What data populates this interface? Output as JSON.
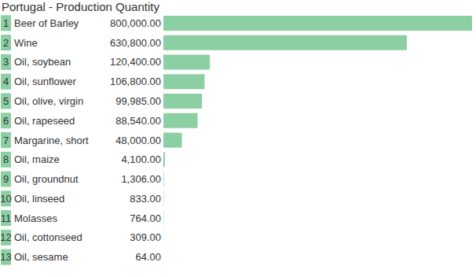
{
  "chart_data": {
    "type": "bar",
    "title": "Portugal - Production Quantity",
    "orientation": "horizontal",
    "ranks": [
      1,
      2,
      3,
      4,
      5,
      6,
      7,
      8,
      9,
      10,
      11,
      12,
      13
    ],
    "categories": [
      "Beer of Barley",
      "Wine",
      "Oil, soybean",
      "Oil, sunflower",
      "Oil, olive, virgin",
      "Oil, rapeseed",
      "Margarine, short",
      "Oil, maize",
      "Oil, groundnut",
      "Oil, linseed",
      "Molasses",
      "Oil, cottonseed",
      "Oil, sesame"
    ],
    "values": [
      800000,
      630800,
      120400,
      106800,
      99985,
      88540,
      48000,
      4100,
      1306,
      833,
      764,
      309,
      64
    ],
    "value_labels": [
      "800,000.00",
      "630,800.00",
      "120,400.00",
      "106,800.00",
      "99,985.00",
      "88,540.00",
      "48,000.00",
      "4,100.00",
      "1,306.00",
      "833.00",
      "764.00",
      "309.00",
      "64.00"
    ],
    "data_labels": true,
    "color": "#8ccfa3",
    "xlim": [
      0,
      800000
    ],
    "tick_labels": false,
    "grid": false
  }
}
